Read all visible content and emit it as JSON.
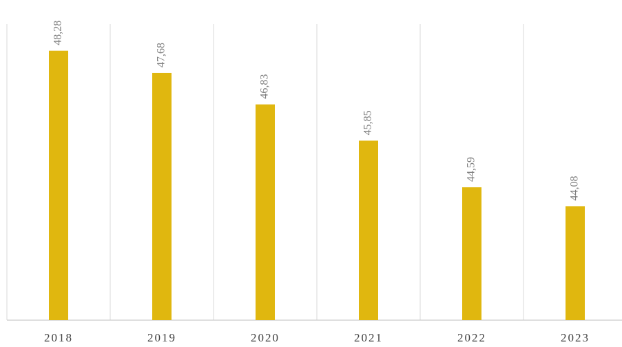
{
  "chart_data": {
    "type": "bar",
    "categories": [
      "2018",
      "2019",
      "2020",
      "2021",
      "2022",
      "2023"
    ],
    "values": [
      48.28,
      47.68,
      46.83,
      45.85,
      44.59,
      44.08
    ],
    "value_labels": [
      "48,28",
      "47,68",
      "46,83",
      "45,85",
      "44,59",
      "44,08"
    ],
    "color": "#e0b70f",
    "ylim": [
      41,
      49
    ]
  }
}
